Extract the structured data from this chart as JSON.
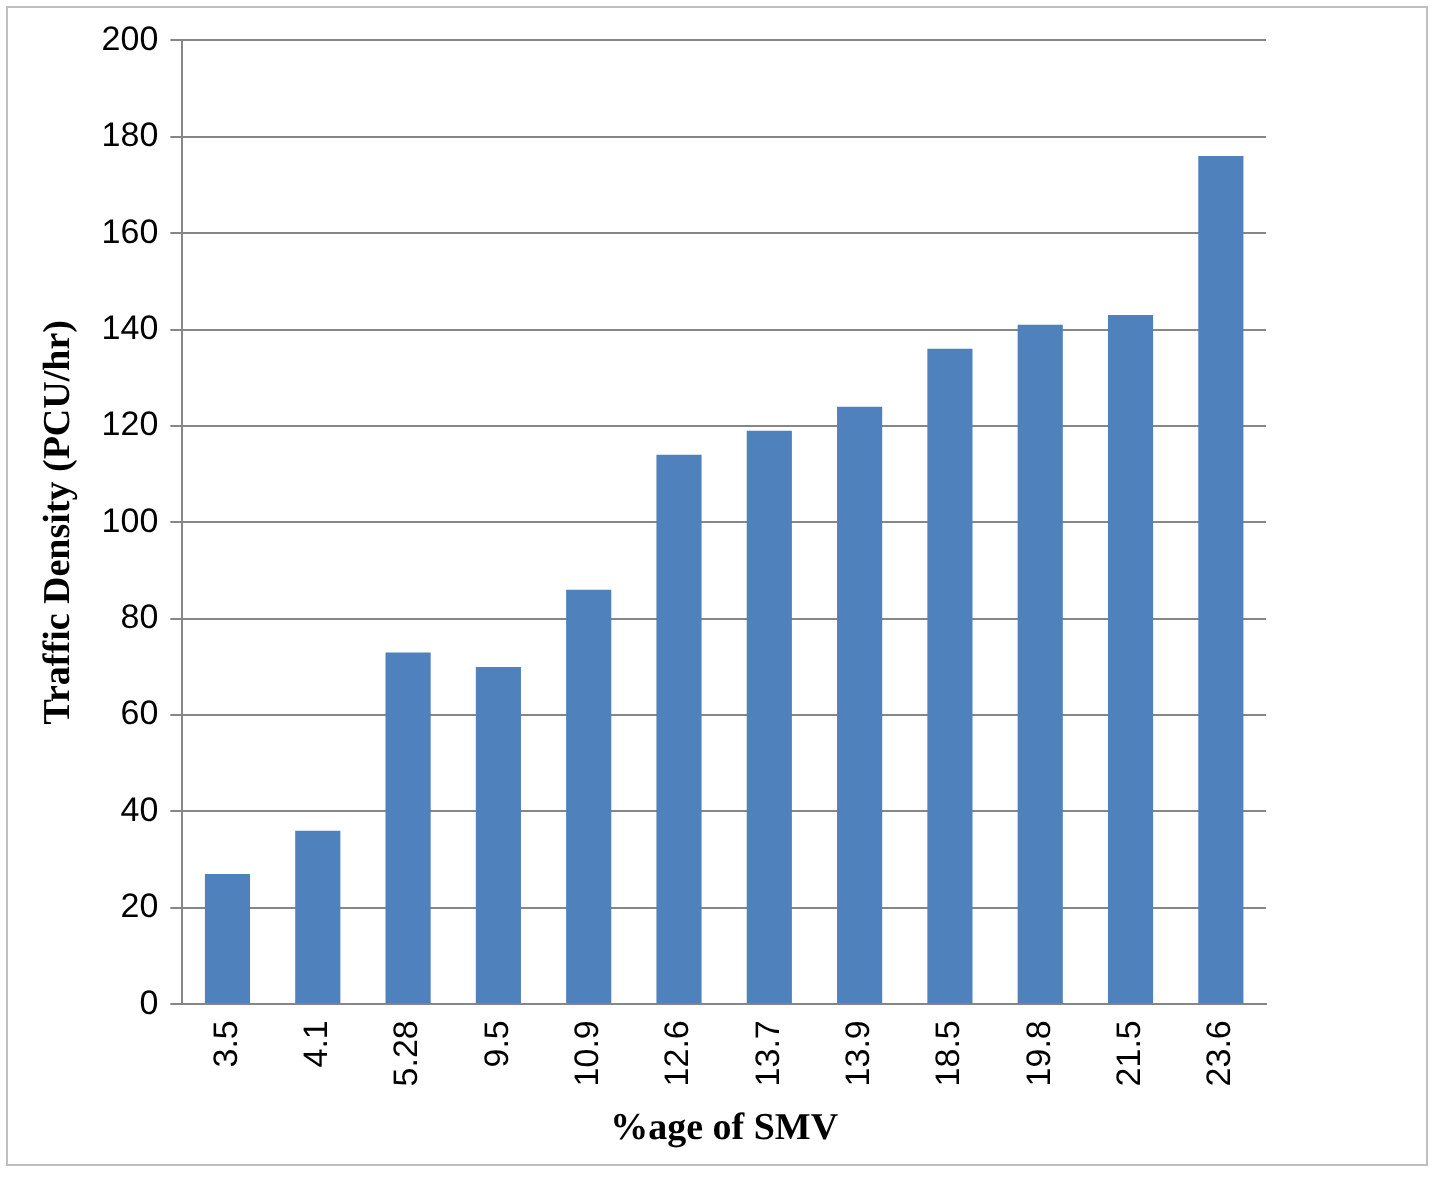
{
  "chart_data": {
    "type": "bar",
    "xlabel": "%age of SMV",
    "ylabel": "Traffic Density (PCU/hr)",
    "categories": [
      "3.5",
      "4.1",
      "5.28",
      "9.5",
      "10.9",
      "12.6",
      "13.7",
      "13.9",
      "18.5",
      "19.8",
      "21.5",
      "23.6"
    ],
    "values": [
      27,
      36,
      73,
      70,
      86,
      114,
      119,
      124,
      136,
      141,
      143,
      176
    ],
    "color": "#4f81bd",
    "ylim": [
      0,
      200
    ],
    "yticks": [
      0,
      20,
      40,
      60,
      80,
      100,
      120,
      140,
      160,
      180,
      200
    ],
    "grid": "y",
    "legend": false
  }
}
